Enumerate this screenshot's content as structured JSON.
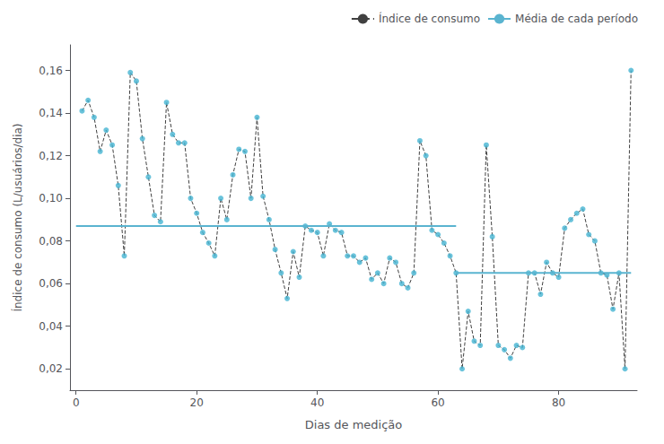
{
  "chart_data": {
    "type": "line",
    "xlabel": "Dias de medição",
    "ylabel": "Índice de consumo (L/usuários/dia)",
    "x": [
      1,
      2,
      3,
      4,
      5,
      6,
      7,
      8,
      9,
      10,
      11,
      12,
      13,
      14,
      15,
      16,
      17,
      18,
      19,
      20,
      21,
      22,
      23,
      24,
      25,
      26,
      27,
      28,
      29,
      30,
      31,
      32,
      33,
      34,
      35,
      36,
      37,
      38,
      39,
      40,
      41,
      42,
      43,
      44,
      45,
      46,
      47,
      48,
      49,
      50,
      51,
      52,
      53,
      54,
      55,
      56,
      57,
      58,
      59,
      60,
      61,
      62,
      63,
      64,
      65,
      66,
      67,
      68,
      69,
      70,
      71,
      72,
      73,
      74,
      75,
      76,
      77,
      78,
      79,
      80,
      81,
      82,
      83,
      84,
      85,
      86,
      87,
      88,
      89,
      90,
      91,
      92
    ],
    "series": [
      {
        "name": "Índice de consumo",
        "type": "line",
        "color": "#404040",
        "line_style": "dashed",
        "marker": "none",
        "values": [
          0.141,
          0.146,
          0.138,
          0.122,
          0.132,
          0.125,
          0.106,
          0.073,
          0.159,
          0.155,
          0.128,
          0.11,
          0.092,
          0.089,
          0.145,
          0.13,
          0.126,
          0.126,
          0.1,
          0.093,
          0.084,
          0.079,
          0.073,
          0.1,
          0.09,
          0.111,
          0.123,
          0.122,
          0.1,
          0.138,
          0.101,
          0.09,
          0.076,
          0.065,
          0.053,
          0.075,
          0.063,
          0.087,
          0.085,
          0.084,
          0.073,
          0.088,
          0.085,
          0.084,
          0.073,
          0.073,
          0.07,
          0.072,
          0.062,
          0.065,
          0.06,
          0.072,
          0.07,
          0.06,
          0.058,
          0.065,
          0.127,
          0.12,
          0.085,
          0.083,
          0.079,
          0.073,
          0.065,
          0.02,
          0.047,
          0.033,
          0.031,
          0.125,
          0.082,
          0.031,
          0.029,
          0.025,
          0.031,
          0.03,
          0.065,
          0.065,
          0.055,
          0.07,
          0.065,
          0.063,
          0.086,
          0.09,
          0.093,
          0.095,
          0.083,
          0.08,
          0.065,
          0.064,
          0.048,
          0.065,
          0.02,
          0.16
        ]
      },
      {
        "type": "scatter",
        "color": "#45b4d2",
        "marker": "circle",
        "values": [
          0.141,
          0.146,
          0.138,
          0.122,
          0.132,
          0.125,
          0.106,
          0.073,
          0.159,
          0.155,
          0.128,
          0.11,
          0.092,
          0.089,
          0.145,
          0.13,
          0.126,
          0.126,
          0.1,
          0.093,
          0.084,
          0.079,
          0.073,
          0.1,
          0.09,
          0.111,
          0.123,
          0.122,
          0.1,
          0.138,
          0.101,
          0.09,
          0.076,
          0.065,
          0.053,
          0.075,
          0.063,
          0.087,
          0.085,
          0.084,
          0.073,
          0.088,
          0.085,
          0.084,
          0.073,
          0.073,
          0.07,
          0.072,
          0.062,
          0.065,
          0.06,
          0.072,
          0.07,
          0.06,
          0.058,
          0.065,
          0.127,
          0.12,
          0.085,
          0.083,
          0.079,
          0.073,
          0.065,
          0.02,
          0.047,
          0.033,
          0.031,
          0.125,
          0.082,
          0.031,
          0.029,
          0.025,
          0.031,
          0.03,
          0.065,
          0.065,
          0.055,
          0.07,
          0.065,
          0.063,
          0.086,
          0.09,
          0.093,
          0.095,
          0.083,
          0.08,
          0.065,
          0.064,
          0.048,
          0.065,
          0.02,
          0.16
        ]
      },
      {
        "name": "Média de cada período",
        "type": "line",
        "color": "#5ab4d0",
        "line_style": "solid",
        "marker": "none",
        "x": [
          0,
          63
        ],
        "values": [
          0.087,
          0.087
        ]
      },
      {
        "name": "Média de cada período",
        "type": "line",
        "color": "#5ab4d0",
        "line_style": "solid",
        "marker": "none",
        "x": [
          63,
          92
        ],
        "values": [
          0.065,
          0.065
        ]
      }
    ],
    "xlim": [
      -1,
      93
    ],
    "xticks": [
      0,
      20,
      40,
      60,
      80
    ],
    "ylim": [
      0.01,
      0.172
    ],
    "yticks": [
      {
        "value": 0.02,
        "label": "0,02"
      },
      {
        "value": 0.04,
        "label": "0,04"
      },
      {
        "value": 0.06,
        "label": "0,06"
      },
      {
        "value": 0.08,
        "label": "0,08"
      },
      {
        "value": 0.1,
        "label": "0,10"
      },
      {
        "value": 0.12,
        "label": "0,12"
      },
      {
        "value": 0.14,
        "label": "0,14"
      },
      {
        "value": 0.16,
        "label": "0,16"
      }
    ],
    "grid": false,
    "legend": "upper right"
  }
}
